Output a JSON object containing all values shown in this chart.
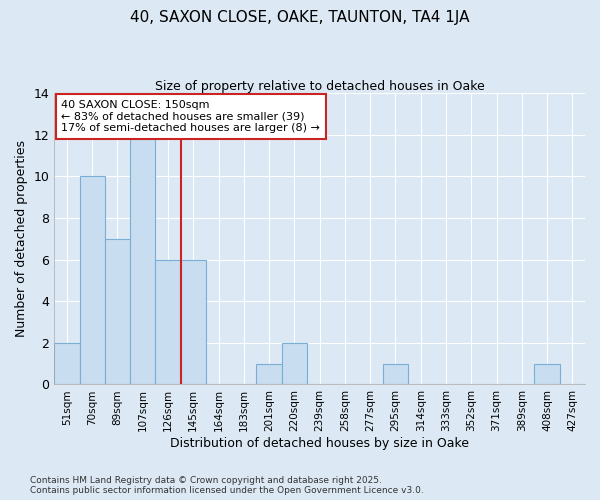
{
  "title1": "40, SAXON CLOSE, OAKE, TAUNTON, TA4 1JA",
  "title2": "Size of property relative to detached houses in Oake",
  "xlabel": "Distribution of detached houses by size in Oake",
  "ylabel": "Number of detached properties",
  "categories": [
    "51sqm",
    "70sqm",
    "89sqm",
    "107sqm",
    "126sqm",
    "145sqm",
    "164sqm",
    "183sqm",
    "201sqm",
    "220sqm",
    "239sqm",
    "258sqm",
    "277sqm",
    "295sqm",
    "314sqm",
    "333sqm",
    "352sqm",
    "371sqm",
    "389sqm",
    "408sqm",
    "427sqm"
  ],
  "values": [
    2,
    10,
    7,
    12,
    6,
    6,
    0,
    0,
    1,
    2,
    0,
    0,
    0,
    1,
    0,
    0,
    0,
    0,
    0,
    1,
    0
  ],
  "bar_color": "#c8ddef",
  "bar_edge_color": "#7aaed6",
  "vline_x_idx": 4.5,
  "vline_color": "#cc2222",
  "annotation_text": "40 SAXON CLOSE: 150sqm\n← 83% of detached houses are smaller (39)\n17% of semi-detached houses are larger (8) →",
  "annotation_box_color": "#ffffff",
  "annotation_box_edge": "#cc2222",
  "ylim": [
    0,
    14
  ],
  "yticks": [
    0,
    2,
    4,
    6,
    8,
    10,
    12,
    14
  ],
  "background_color": "#dce9f5",
  "grid_color": "#ffffff",
  "footer": "Contains HM Land Registry data © Crown copyright and database right 2025.\nContains public sector information licensed under the Open Government Licence v3.0."
}
